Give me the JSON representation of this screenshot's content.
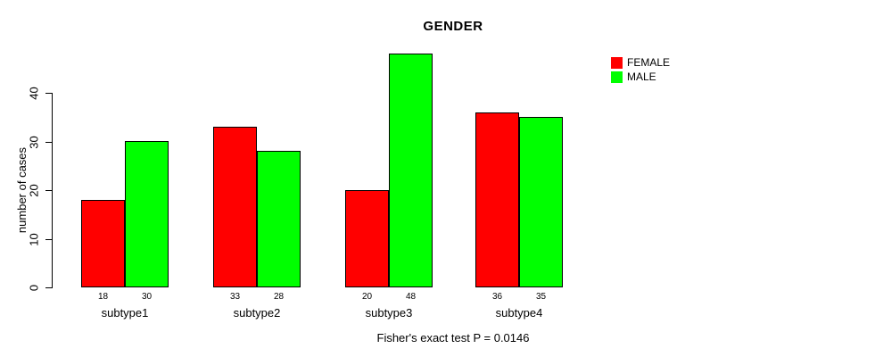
{
  "chart_data": {
    "type": "bar",
    "title": "GENDER",
    "xlabel": "",
    "ylabel": "number of cases",
    "categories": [
      "subtype1",
      "subtype2",
      "subtype3",
      "subtype4"
    ],
    "series": [
      {
        "name": "FEMALE",
        "color": "#ff0000",
        "values": [
          18,
          33,
          20,
          36
        ]
      },
      {
        "name": "MALE",
        "color": "#00ff00",
        "values": [
          30,
          28,
          48,
          35
        ]
      }
    ],
    "bar_value_labels": [
      [
        18,
        30
      ],
      [
        33,
        28
      ],
      [
        20,
        48
      ],
      [
        36,
        35
      ]
    ],
    "yticks": [
      0,
      10,
      20,
      30,
      40
    ],
    "ylim": [
      0,
      40
    ],
    "grid": false,
    "legend": {
      "position": "top-right",
      "entries": [
        "FEMALE",
        "MALE"
      ]
    },
    "caption": "Fisher's exact test P = 0.0146",
    "colors": {
      "background": "#ffffff",
      "bar_border": "#000000",
      "axis": "#000000",
      "text": "#000000"
    }
  }
}
